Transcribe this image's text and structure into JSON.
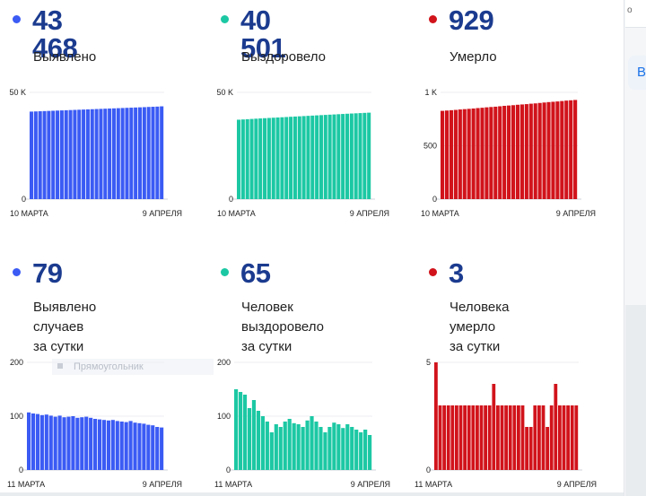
{
  "panels": [
    {
      "value": "43 468",
      "label": "Выявлено",
      "color": "#3b5bf4",
      "ymax": 50000,
      "ticks": [
        {
          "v": 50000,
          "t": "50 K"
        },
        {
          "v": 0,
          "t": "0"
        }
      ],
      "xstart": "10 МАРТА",
      "xend": "9 АПРЕЛЯ"
    },
    {
      "value": "40 501",
      "label": "Выздоровело",
      "color": "#1cc8a4",
      "ymax": 50000,
      "ticks": [
        {
          "v": 50000,
          "t": "50 K"
        },
        {
          "v": 0,
          "t": "0"
        }
      ],
      "xstart": "10 МАРТА",
      "xend": "9 АПРЕЛЯ"
    },
    {
      "value": "929",
      "label": "Умерло",
      "color": "#d1131b",
      "ymax": 1000,
      "ticks": [
        {
          "v": 1000,
          "t": "1 K"
        },
        {
          "v": 500,
          "t": "500"
        },
        {
          "v": 0,
          "t": "0"
        }
      ],
      "xstart": "10 МАРТА",
      "xend": "9 АПРЕЛЯ"
    },
    {
      "value": "79",
      "label": "Выявлено случаев\nза сутки",
      "color": "#3b5bf4",
      "ymax": 200,
      "ticks": [
        {
          "v": 200,
          "t": "200"
        },
        {
          "v": 100,
          "t": "100"
        },
        {
          "v": 0,
          "t": "0"
        }
      ],
      "xstart": "11 МАРТА",
      "xend": "9 АПРЕЛЯ"
    },
    {
      "value": "65",
      "label": "Человек выздоровело\nза сутки",
      "color": "#1cc8a4",
      "ymax": 200,
      "ticks": [
        {
          "v": 200,
          "t": "200"
        },
        {
          "v": 100,
          "t": "100"
        },
        {
          "v": 0,
          "t": "0"
        }
      ],
      "xstart": "11 МАРТА",
      "xend": "9 АПРЕЛЯ"
    },
    {
      "value": "3",
      "label": "Человека умерло\nза сутки",
      "color": "#d1131b",
      "ymax": 5,
      "ticks": [
        {
          "v": 5,
          "t": "5"
        },
        {
          "v": 0,
          "t": "0"
        }
      ],
      "xstart": "11 МАРТА",
      "xend": "9 АПРЕЛЯ"
    }
  ],
  "chart_data": [
    {
      "type": "bar",
      "series": [
        {
          "values": [
            41000,
            41080,
            41160,
            41240,
            41320,
            41400,
            41480,
            41560,
            41640,
            41720,
            41800,
            41880,
            41960,
            42040,
            42120,
            42200,
            42280,
            42360,
            42440,
            42520,
            42600,
            42680,
            42760,
            42840,
            42920,
            43000,
            43080,
            43180,
            43260,
            43340,
            43468
          ]
        }
      ],
      "ylim": [
        0,
        50000
      ],
      "xlabel": "",
      "ylabel": ""
    },
    {
      "type": "bar",
      "series": [
        {
          "values": [
            37200,
            37320,
            37440,
            37560,
            37680,
            37800,
            37910,
            38020,
            38130,
            38240,
            38350,
            38460,
            38570,
            38680,
            38790,
            38900,
            39010,
            39120,
            39230,
            39340,
            39450,
            39560,
            39670,
            39780,
            39890,
            40000,
            40100,
            40200,
            40300,
            40400,
            40501
          ]
        }
      ],
      "ylim": [
        0,
        50000
      ],
      "xlabel": "",
      "ylabel": ""
    },
    {
      "type": "bar",
      "series": [
        {
          "values": [
            827,
            830,
            833,
            836,
            840,
            843,
            846,
            849,
            853,
            856,
            860,
            863,
            866,
            870,
            874,
            877,
            880,
            884,
            887,
            890,
            894,
            897,
            901,
            905,
            909,
            912,
            915,
            919,
            923,
            926,
            929
          ]
        }
      ],
      "ylim": [
        0,
        1000
      ],
      "xlabel": "",
      "ylabel": ""
    },
    {
      "type": "bar",
      "series": [
        {
          "values": [
            107,
            105,
            104,
            102,
            103,
            101,
            99,
            101,
            98,
            99,
            100,
            97,
            98,
            99,
            97,
            95,
            94,
            93,
            92,
            93,
            91,
            90,
            89,
            91,
            88,
            87,
            86,
            84,
            83,
            80,
            79
          ]
        }
      ],
      "ylim": [
        0,
        200
      ],
      "xlabel": "",
      "ylabel": ""
    },
    {
      "type": "bar",
      "series": [
        {
          "values": [
            150,
            145,
            140,
            115,
            130,
            110,
            100,
            90,
            70,
            85,
            80,
            90,
            95,
            87,
            85,
            80,
            92,
            100,
            90,
            80,
            70,
            80,
            88,
            85,
            78,
            85,
            80,
            75,
            70,
            75,
            65
          ]
        }
      ],
      "ylim": [
        0,
        200
      ],
      "xlabel": "",
      "ylabel": ""
    },
    {
      "type": "bar",
      "series": [
        {
          "values": [
            5,
            3,
            3,
            3,
            3,
            3,
            3,
            3,
            3,
            3,
            3,
            3,
            3,
            3,
            4,
            3,
            3,
            3,
            3,
            3,
            3,
            3,
            2,
            2,
            3,
            3,
            3,
            2,
            3,
            4,
            3,
            3,
            3,
            3,
            3
          ]
        }
      ],
      "ylim": [
        0,
        5
      ],
      "xlabel": "",
      "ylabel": ""
    }
  ],
  "sidebar": {
    "top_text": "о",
    "button_text": "В"
  },
  "ghost_text": "Прямоугольник"
}
